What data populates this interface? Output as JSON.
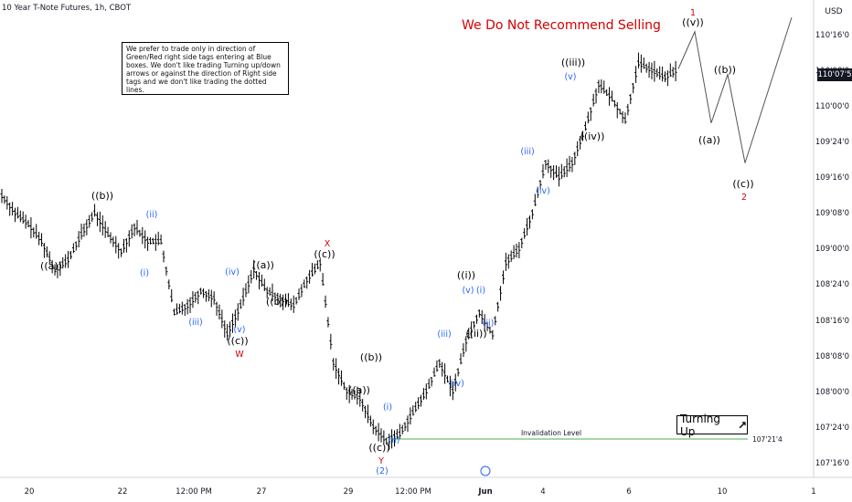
{
  "header": {
    "title": "10 Year T-Note Futures, 1h, CBOT",
    "currency": "USD",
    "current_price": "110'07'5",
    "headline": "We Do Not Recommend Selling"
  },
  "note": "We prefer to trade only in direction of Green/Red right side tags entering at Blue boxes. We don't like trading Turning up/down arrows or against the direction of Right side tags and we don't like trading the dotted lines.",
  "turning": {
    "label": "Turning Up",
    "arrow": "↗"
  },
  "colors": {
    "headline": "#d50000",
    "wave_blue": "#2962ff",
    "wave_black": "#000000",
    "wave_red": "#d50000",
    "invalidation": "#4caf50"
  },
  "chart_data": {
    "type": "candlestick",
    "y_ticks": [
      "110'16'0",
      "110'08'0",
      "110'00'0",
      "109'24'0",
      "109'16'0",
      "109'08'0",
      "109'00'0",
      "108'24'0",
      "108'16'0",
      "108'08'0",
      "108'00'0",
      "107'24'0",
      "107'16'0"
    ],
    "x_ticks": [
      "20",
      "22",
      "12:00 PM",
      "27",
      "29",
      "12:00 PM",
      "Jun",
      "4",
      "6",
      "10",
      "1"
    ],
    "invalidation": {
      "label": "Invalidation Level",
      "value": "107'21'4"
    },
    "price_path": [
      [
        "20",
        109.37
      ],
      [
        "20",
        109.25
      ],
      [
        "20",
        109.17
      ],
      [
        "21",
        109.05
      ],
      [
        "21",
        108.85
      ],
      [
        "21",
        108.92
      ],
      [
        "22",
        109.1
      ],
      [
        "22",
        109.25
      ],
      [
        "22",
        109.1
      ],
      [
        "22",
        108.98
      ],
      [
        "22",
        109.15
      ],
      [
        "22",
        109.05
      ],
      [
        "12:00 PM",
        109.05
      ],
      [
        "12:00 PM",
        108.55
      ],
      [
        "12:00 PM",
        108.6
      ],
      [
        "12:00 PM",
        108.7
      ],
      [
        "27",
        108.65
      ],
      [
        "27",
        108.4
      ],
      [
        "27",
        108.6
      ],
      [
        "27",
        108.85
      ],
      [
        "27",
        108.7
      ],
      [
        "28",
        108.65
      ],
      [
        "28",
        108.6
      ],
      [
        "28",
        108.78
      ],
      [
        "28",
        108.9
      ],
      [
        "29",
        108.2
      ],
      [
        "29",
        108.0
      ],
      [
        "29",
        107.95
      ],
      [
        "29",
        107.75
      ],
      [
        "29",
        107.65
      ],
      [
        "12:00 PM",
        107.7
      ],
      [
        "12:00 PM",
        107.85
      ],
      [
        "12:00 PM",
        108.0
      ],
      [
        "12:00 PM",
        108.2
      ],
      [
        "31",
        108.0
      ],
      [
        "31",
        108.35
      ],
      [
        "31",
        108.55
      ],
      [
        "31",
        108.4
      ],
      [
        "Jun",
        108.9
      ],
      [
        "Jun",
        109.0
      ],
      [
        "Jun",
        109.25
      ],
      [
        "Jun",
        109.6
      ],
      [
        "4",
        109.5
      ],
      [
        "4",
        109.6
      ],
      [
        "4",
        109.85
      ],
      [
        "4",
        110.15
      ],
      [
        "4",
        110.05
      ],
      [
        "5",
        109.9
      ],
      [
        "5",
        110.3
      ],
      [
        "6",
        110.25
      ],
      [
        "6",
        110.2
      ],
      [
        "6",
        110.26
      ]
    ],
    "projection": [
      [
        "6",
        110.26
      ],
      [
        "7",
        110.52
      ],
      [
        "8",
        109.88
      ],
      [
        "9",
        110.22
      ],
      [
        "9",
        109.6
      ],
      [
        "10",
        110.62
      ]
    ],
    "wave_labels": [
      {
        "text": "((b))",
        "color": "black"
      },
      {
        "text": "((a))",
        "color": "black"
      },
      {
        "text": "(ii)",
        "color": "blue"
      },
      {
        "text": "(i)",
        "color": "blue"
      },
      {
        "text": "(iii)",
        "color": "blue"
      },
      {
        "text": "(iv)",
        "color": "blue"
      },
      {
        "text": "(v)",
        "color": "blue"
      },
      {
        "text": "((c))",
        "color": "black"
      },
      {
        "text": "W",
        "color": "red"
      },
      {
        "text": "((a))",
        "color": "black"
      },
      {
        "text": "((b))",
        "color": "black"
      },
      {
        "text": "((c))",
        "color": "black"
      },
      {
        "text": "X",
        "color": "red"
      },
      {
        "text": "((b))",
        "color": "black"
      },
      {
        "text": "((a))",
        "color": "black"
      },
      {
        "text": "(i)",
        "color": "blue"
      },
      {
        "text": "(ii)",
        "color": "blue"
      },
      {
        "text": "((c))",
        "color": "black"
      },
      {
        "text": "Y",
        "color": "red"
      },
      {
        "text": "(2)",
        "color": "blue"
      },
      {
        "text": "(iii)",
        "color": "blue"
      },
      {
        "text": "(iv)",
        "color": "blue"
      },
      {
        "text": "((i))",
        "color": "black"
      },
      {
        "text": "(v)",
        "color": "blue"
      },
      {
        "text": "(i)",
        "color": "blue"
      },
      {
        "text": "(ii)",
        "color": "blue"
      },
      {
        "text": "((ii))",
        "color": "black"
      },
      {
        "text": "(iii)",
        "color": "blue"
      },
      {
        "text": "(iv)",
        "color": "blue"
      },
      {
        "text": "((iii))",
        "color": "black"
      },
      {
        "text": "(v)",
        "color": "blue"
      },
      {
        "text": "((iv))",
        "color": "black"
      },
      {
        "text": "1",
        "color": "red"
      },
      {
        "text": "((v))",
        "color": "black"
      },
      {
        "text": "((a))",
        "color": "black"
      },
      {
        "text": "((b))",
        "color": "black"
      },
      {
        "text": "((c))",
        "color": "black"
      },
      {
        "text": "2",
        "color": "red"
      }
    ]
  }
}
